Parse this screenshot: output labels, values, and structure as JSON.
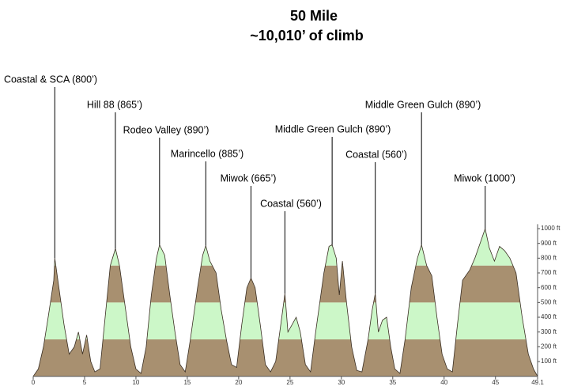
{
  "chart_data": {
    "type": "area",
    "title": "50 Mile",
    "subtitle": "~10,010’ of climb",
    "x": [
      0,
      0.5,
      1.0,
      1.5,
      2.0,
      2.1,
      2.5,
      3.0,
      3.5,
      4.0,
      4.4,
      4.8,
      5.2,
      5.6,
      6.0,
      6.5,
      7.0,
      7.5,
      8.0,
      8.4,
      9.0,
      9.5,
      10.0,
      10.5,
      11.0,
      11.5,
      12.0,
      12.3,
      12.8,
      13.3,
      13.8,
      14.3,
      14.8,
      15.3,
      16.0,
      16.5,
      16.8,
      17.2,
      17.8,
      18.3,
      18.8,
      19.3,
      19.8,
      20.3,
      20.8,
      21.2,
      21.6,
      22.1,
      22.6,
      23.1,
      23.6,
      24.0,
      24.5,
      24.8,
      25.2,
      25.6,
      26.0,
      26.5,
      27.0,
      27.5,
      28.3,
      28.8,
      29.1,
      29.5,
      29.8,
      30.1,
      30.5,
      31.0,
      31.5,
      32.0,
      32.6,
      33.0,
      33.3,
      33.6,
      34.0,
      34.4,
      34.8,
      35.2,
      35.7,
      36.2,
      36.8,
      37.4,
      37.8,
      38.3,
      38.8,
      39.3,
      39.8,
      40.3,
      40.8,
      41.3,
      41.8,
      42.5,
      43.0,
      43.5,
      44.0,
      44.4,
      44.9,
      45.4,
      45.9,
      46.4,
      47.0,
      47.6,
      48.2,
      48.7,
      49.1
    ],
    "values": [
      0,
      50,
      200,
      420,
      650,
      800,
      600,
      350,
      150,
      200,
      300,
      150,
      280,
      100,
      30,
      50,
      400,
      750,
      865,
      750,
      450,
      200,
      50,
      20,
      200,
      550,
      800,
      890,
      820,
      550,
      300,
      80,
      30,
      250,
      600,
      820,
      885,
      780,
      700,
      450,
      250,
      80,
      60,
      350,
      600,
      665,
      600,
      350,
      80,
      30,
      100,
      300,
      560,
      300,
      350,
      400,
      300,
      80,
      30,
      300,
      700,
      880,
      890,
      800,
      550,
      780,
      500,
      200,
      40,
      30,
      250,
      450,
      560,
      300,
      380,
      400,
      200,
      50,
      20,
      250,
      600,
      800,
      890,
      750,
      680,
      400,
      150,
      50,
      30,
      350,
      650,
      720,
      800,
      900,
      1000,
      870,
      780,
      880,
      850,
      800,
      700,
      400,
      150,
      50,
      0
    ],
    "color": "#3a2e22",
    "bands": [
      {
        "from": 0,
        "to": 250,
        "color": "#a89070"
      },
      {
        "from": 250,
        "to": 500,
        "color": "#ccf7c8"
      },
      {
        "from": 500,
        "to": 750,
        "color": "#a89070"
      },
      {
        "from": 750,
        "to": 1030,
        "color": "#ccf7c8"
      }
    ],
    "xlim": [
      0,
      49.1
    ],
    "xticks": [
      0,
      5,
      10,
      15,
      20,
      25,
      30,
      35,
      40,
      45,
      49.1
    ],
    "ylim": [
      0,
      1030
    ],
    "yticks": [
      {
        "value": 100,
        "label": "100 ft"
      },
      {
        "value": 200,
        "label": "200 ft"
      },
      {
        "value": 300,
        "label": "300 ft"
      },
      {
        "value": 400,
        "label": "400 ft"
      },
      {
        "value": 500,
        "label": "500 ft"
      },
      {
        "value": 600,
        "label": "600 ft"
      },
      {
        "value": 700,
        "label": "700 ft"
      },
      {
        "value": 800,
        "label": "800 ft"
      },
      {
        "value": 900,
        "label": "900 ft"
      },
      {
        "value": 1000,
        "label": "1000 ft"
      }
    ],
    "annotations": [
      {
        "text": "Coastal & SCA (800’)",
        "x": 2.1,
        "y": 800
      },
      {
        "text": "Hill 88 (865’)",
        "x": 8.0,
        "y": 865
      },
      {
        "text": "Rodeo Valley (890’)",
        "x": 12.3,
        "y": 890
      },
      {
        "text": "Marincello (885’)",
        "x": 16.8,
        "y": 885
      },
      {
        "text": "Miwok (665’)",
        "x": 21.2,
        "y": 665
      },
      {
        "text": "Coastal (560’)",
        "x": 24.5,
        "y": 560
      },
      {
        "text": "Middle Green Gulch (890’)",
        "x": 29.1,
        "y": 890
      },
      {
        "text": "Coastal (560’)",
        "x": 33.3,
        "y": 560
      },
      {
        "text": "Middle Green Gulch (890’)",
        "x": 37.8,
        "y": 890
      },
      {
        "text": "Miwok (1000’)",
        "x": 44.0,
        "y": 1000
      }
    ]
  }
}
